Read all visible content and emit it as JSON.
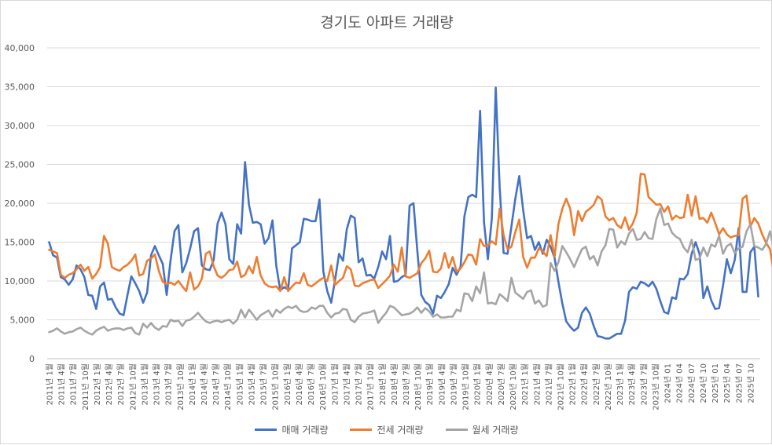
{
  "chart_data": {
    "type": "line",
    "title": "경기도 아파트 거래량",
    "xlabel": "",
    "ylabel": "",
    "ylim": [
      0,
      40000
    ],
    "yticks": [
      0,
      5000,
      10000,
      15000,
      20000,
      25000,
      30000,
      35000,
      40000
    ],
    "ytick_labels": [
      "0",
      "5,000",
      "10,000",
      "15,000",
      "20,000",
      "25,000",
      "30,000",
      "35,000",
      "40,000"
    ],
    "grid": "horizontal",
    "legend_position": "bottom",
    "xtick_labels": [
      "2011년 1월",
      "2011년 4월",
      "2011년 7월",
      "2011년 10월",
      "2012년 1월",
      "2012년 4월",
      "2012년 7월",
      "2012년 10월",
      "2013년 1월",
      "2013년 4월",
      "2013년 7월",
      "2013년 10월",
      "2014년 1월",
      "2014년 4월",
      "2014년 7월",
      "2014년 10월",
      "2015년 1월",
      "2015년 4월",
      "2015년 7월",
      "2015년 10월",
      "2016년 1월",
      "2016년 4월",
      "2016년 7월",
      "2016년 10월",
      "2017년 1월",
      "2017년 4월",
      "2017년 7월",
      "2017년 10월",
      "2018년 1월",
      "2018년 4월",
      "2018년 7월",
      "2018년 10월",
      "2019년 1월",
      "2019년 4월",
      "2019년 7월",
      "2019년 10월",
      "2020년 1월",
      "2020년 4월",
      "2020년 7월",
      "2020년 10월",
      "2021년 1월",
      "2021년 4월",
      "2021년 7월",
      "2021년 10월",
      "2022년 1월",
      "2022년 4월",
      "2022년 7월",
      "2022년 10월",
      "2023년 1월",
      "2023년 4월",
      "2023년 7월",
      "2023년 10월",
      "2024년 01",
      "2024년 04",
      "2024년 07",
      "2024년 10",
      "2025년 01",
      "2025년 04",
      "2025년 07",
      "2025년 10"
    ],
    "series": [
      {
        "name": "매매 거래량",
        "color": "#4472c4",
        "values": [
          15000,
          13300,
          13000,
          10500,
          10200,
          9500,
          10200,
          12000,
          11500,
          10500,
          8200,
          8100,
          6400,
          9300,
          9800,
          7600,
          7700,
          6600,
          5800,
          5600,
          8200,
          10600,
          9700,
          8700,
          7200,
          8500,
          13300,
          14500,
          13300,
          12200,
          8200,
          12700,
          16400,
          17200,
          11100,
          12300,
          14200,
          16400,
          16800,
          12000,
          11500,
          11400,
          12700,
          17400,
          18800,
          17300,
          12800,
          12200,
          17300,
          16100,
          25300,
          19800,
          17500,
          17600,
          17300,
          14800,
          15500,
          17800,
          11900,
          8800,
          9200,
          8900,
          14200,
          14600,
          15000,
          18000,
          17900,
          17700,
          17700,
          20500,
          11200,
          8700,
          7200,
          10200,
          13500,
          12600,
          16700,
          18400,
          18100,
          12400,
          12900,
          10700,
          10800,
          10300,
          11800,
          13800,
          12800,
          15800,
          9900,
          10000,
          10500,
          10800,
          19700,
          20000,
          13800,
          8200,
          7300,
          6900,
          5800,
          8100,
          7800,
          8600,
          9600,
          11700,
          10800,
          11800,
          18300,
          20800,
          21100,
          20800,
          31900,
          17500,
          12800,
          18000,
          34900,
          22000,
          13600,
          13500,
          17000,
          20600,
          23500,
          19100,
          15500,
          15800,
          14000,
          15000,
          13500,
          15300,
          14400,
          13000,
          9900,
          7100,
          4800,
          4100,
          3600,
          4000,
          5900,
          6600,
          5800,
          4200,
          2900,
          2800,
          2600,
          2600,
          2900,
          3200,
          3200,
          4900,
          8600,
          9200,
          9000,
          9900,
          9700,
          9300,
          9900,
          9000,
          7400,
          6000,
          5800,
          7900,
          7700,
          10300,
          10200,
          10900,
          13500,
          15000,
          13500,
          7800,
          9300,
          7500,
          6400,
          6500,
          9400,
          12800,
          11000,
          12700,
          16800,
          8600,
          8600,
          13700,
          14400,
          8000
        ]
      },
      {
        "name": "전세 거래량",
        "color": "#ed7d31",
        "values": [
          14000,
          13800,
          13600,
          10800,
          10400,
          10800,
          11000,
          11500,
          12100,
          11300,
          11800,
          10300,
          10900,
          11800,
          15800,
          14800,
          11800,
          11500,
          11300,
          11800,
          12100,
          12600,
          13400,
          10700,
          10900,
          12600,
          12900,
          13400,
          11300,
          9900,
          9600,
          9800,
          9500,
          10000,
          9300,
          8700,
          11100,
          8900,
          9300,
          10300,
          13500,
          13800,
          11900,
          10700,
          10400,
          10800,
          11400,
          11500,
          12500,
          10500,
          10800,
          11900,
          11000,
          13100,
          10700,
          9700,
          9300,
          9200,
          9300,
          8700,
          10500,
          8700,
          9300,
          9800,
          9700,
          11000,
          9500,
          9300,
          9700,
          10100,
          10400,
          10000,
          12000,
          9500,
          10000,
          10400,
          11900,
          11500,
          9400,
          9300,
          9700,
          9900,
          10100,
          10200,
          9100,
          9600,
          10100,
          10700,
          12100,
          11200,
          14300,
          10600,
          10400,
          10700,
          11000,
          12300,
          12900,
          13900,
          11200,
          11100,
          11600,
          13600,
          11700,
          13100,
          11200,
          11600,
          12400,
          13400,
          13300,
          12100,
          15400,
          14500,
          14600,
          15100,
          14700,
          19300,
          15900,
          14100,
          14400,
          16300,
          17900,
          13100,
          11700,
          13000,
          13000,
          14200,
          13800,
          13200,
          15900,
          13100,
          17300,
          19300,
          20600,
          19300,
          15900,
          19000,
          17700,
          18900,
          19300,
          19800,
          20900,
          20500,
          18300,
          17800,
          18100,
          17200,
          16800,
          18200,
          16600,
          17400,
          18800,
          23800,
          23700,
          20800,
          20300,
          19800,
          19900,
          18900,
          19600,
          17900,
          18400,
          18100,
          18200,
          21100,
          18400,
          20900,
          18000,
          18100,
          17500,
          18800,
          17500,
          16000,
          16800,
          16000,
          15600,
          15800,
          15900,
          20600,
          21000,
          17000,
          18100,
          17400,
          16000,
          14900,
          14100,
          11000
        ]
      },
      {
        "name": "월세 거래량",
        "color": "#a5a5a5",
        "values": [
          3400,
          3600,
          3900,
          3500,
          3200,
          3400,
          3500,
          3800,
          4000,
          3600,
          3300,
          3100,
          3600,
          3900,
          4100,
          3600,
          3800,
          3900,
          3900,
          3700,
          3900,
          4000,
          3300,
          3100,
          4500,
          4000,
          4600,
          4000,
          3700,
          4200,
          4100,
          5000,
          4800,
          4900,
          4200,
          4900,
          5000,
          5400,
          5900,
          5300,
          4800,
          4600,
          4800,
          4900,
          4700,
          4900,
          5000,
          4500,
          5000,
          6300,
          5300,
          6300,
          5700,
          5000,
          5600,
          5900,
          6200,
          5400,
          6300,
          5900,
          6400,
          6700,
          6500,
          6800,
          6200,
          6000,
          6100,
          6600,
          6400,
          6800,
          6800,
          5900,
          5300,
          5800,
          5900,
          6400,
          6300,
          5000,
          4700,
          5400,
          5800,
          5900,
          6000,
          6200,
          4600,
          5300,
          5900,
          6800,
          6600,
          6100,
          5600,
          5700,
          5800,
          6100,
          6600,
          5900,
          6500,
          6100,
          5400,
          5700,
          5300,
          5300,
          5400,
          5400,
          6300,
          6100,
          8400,
          8300,
          7400,
          9300,
          8400,
          11100,
          7100,
          7200,
          7000,
          8300,
          7900,
          7400,
          10400,
          8500,
          8100,
          7700,
          8600,
          8800,
          7100,
          7500,
          6700,
          6900,
          12300,
          11300,
          12400,
          14500,
          13700,
          12800,
          11800,
          13000,
          14100,
          14400,
          12800,
          13200,
          12000,
          13800,
          14600,
          16700,
          16600,
          14300,
          15100,
          14700,
          16100,
          16700,
          15300,
          15400,
          16300,
          15500,
          15400,
          18000,
          19300,
          17200,
          17400,
          16200,
          15700,
          15400,
          14300,
          13700,
          15300,
          12700,
          12900,
          14300,
          13200,
          14700,
          14400,
          15800,
          13500,
          14500,
          14800,
          13600,
          14200,
          14400,
          16400,
          17300,
          14500,
          14300,
          14000,
          14800,
          16400,
          14100,
          11600
        ]
      }
    ]
  }
}
